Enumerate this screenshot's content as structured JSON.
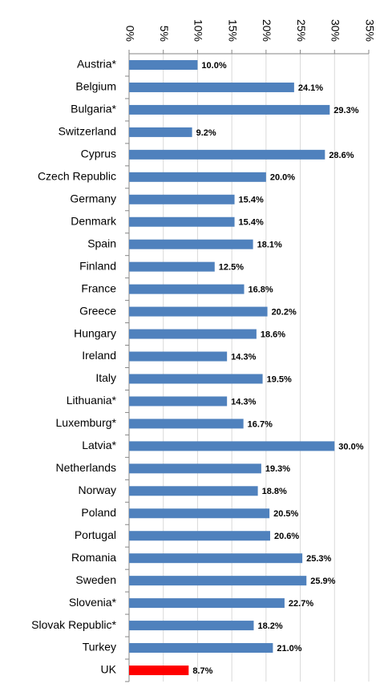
{
  "chart_data": {
    "type": "barh",
    "categories": [
      "Austria*",
      "Belgium",
      "Bulgaria*",
      "Switzerland",
      "Cyprus",
      "Czech Republic",
      "Germany",
      "Denmark",
      "Spain",
      "Finland",
      "France",
      "Greece",
      "Hungary",
      "Ireland",
      "Italy",
      "Lithuania*",
      "Luxemburg*",
      "Latvia*",
      "Netherlands",
      "Norway",
      "Poland",
      "Portugal",
      "Romania",
      "Sweden",
      "Slovenia*",
      "Slovak Republic*",
      "Turkey",
      "UK"
    ],
    "values": [
      10.0,
      24.1,
      29.3,
      9.2,
      28.6,
      20.0,
      15.4,
      15.4,
      18.1,
      12.5,
      16.8,
      20.2,
      18.6,
      14.3,
      19.5,
      14.3,
      16.7,
      30.0,
      19.3,
      18.8,
      20.5,
      20.6,
      25.3,
      25.9,
      22.7,
      18.2,
      21.0,
      8.7
    ],
    "value_labels": [
      "10.0%",
      "24.1%",
      "29.3%",
      "9.2%",
      "28.6%",
      "20.0%",
      "15.4%",
      "15.4%",
      "18.1%",
      "12.5%",
      "16.8%",
      "20.2%",
      "18.6%",
      "14.3%",
      "19.5%",
      "14.3%",
      "16.7%",
      "30.0%",
      "19.3%",
      "18.8%",
      "20.5%",
      "20.6%",
      "25.3%",
      "25.9%",
      "22.7%",
      "18.2%",
      "21.0%",
      "8.7%"
    ],
    "colors": [
      "#4f81bd",
      "#4f81bd",
      "#4f81bd",
      "#4f81bd",
      "#4f81bd",
      "#4f81bd",
      "#4f81bd",
      "#4f81bd",
      "#4f81bd",
      "#4f81bd",
      "#4f81bd",
      "#4f81bd",
      "#4f81bd",
      "#4f81bd",
      "#4f81bd",
      "#4f81bd",
      "#4f81bd",
      "#4f81bd",
      "#4f81bd",
      "#4f81bd",
      "#4f81bd",
      "#4f81bd",
      "#4f81bd",
      "#4f81bd",
      "#4f81bd",
      "#4f81bd",
      "#4f81bd",
      "#ff0000"
    ],
    "xlim": [
      0,
      35
    ],
    "xticks": [
      {
        "value": 0,
        "label": "0%"
      },
      {
        "value": 5,
        "label": "5%"
      },
      {
        "value": 10,
        "label": "10%"
      },
      {
        "value": 15,
        "label": "15%"
      },
      {
        "value": 20,
        "label": "20%"
      },
      {
        "value": 25,
        "label": "25%"
      },
      {
        "value": 30,
        "label": "30%"
      },
      {
        "value": 35,
        "label": "35%"
      }
    ],
    "grid": true
  }
}
